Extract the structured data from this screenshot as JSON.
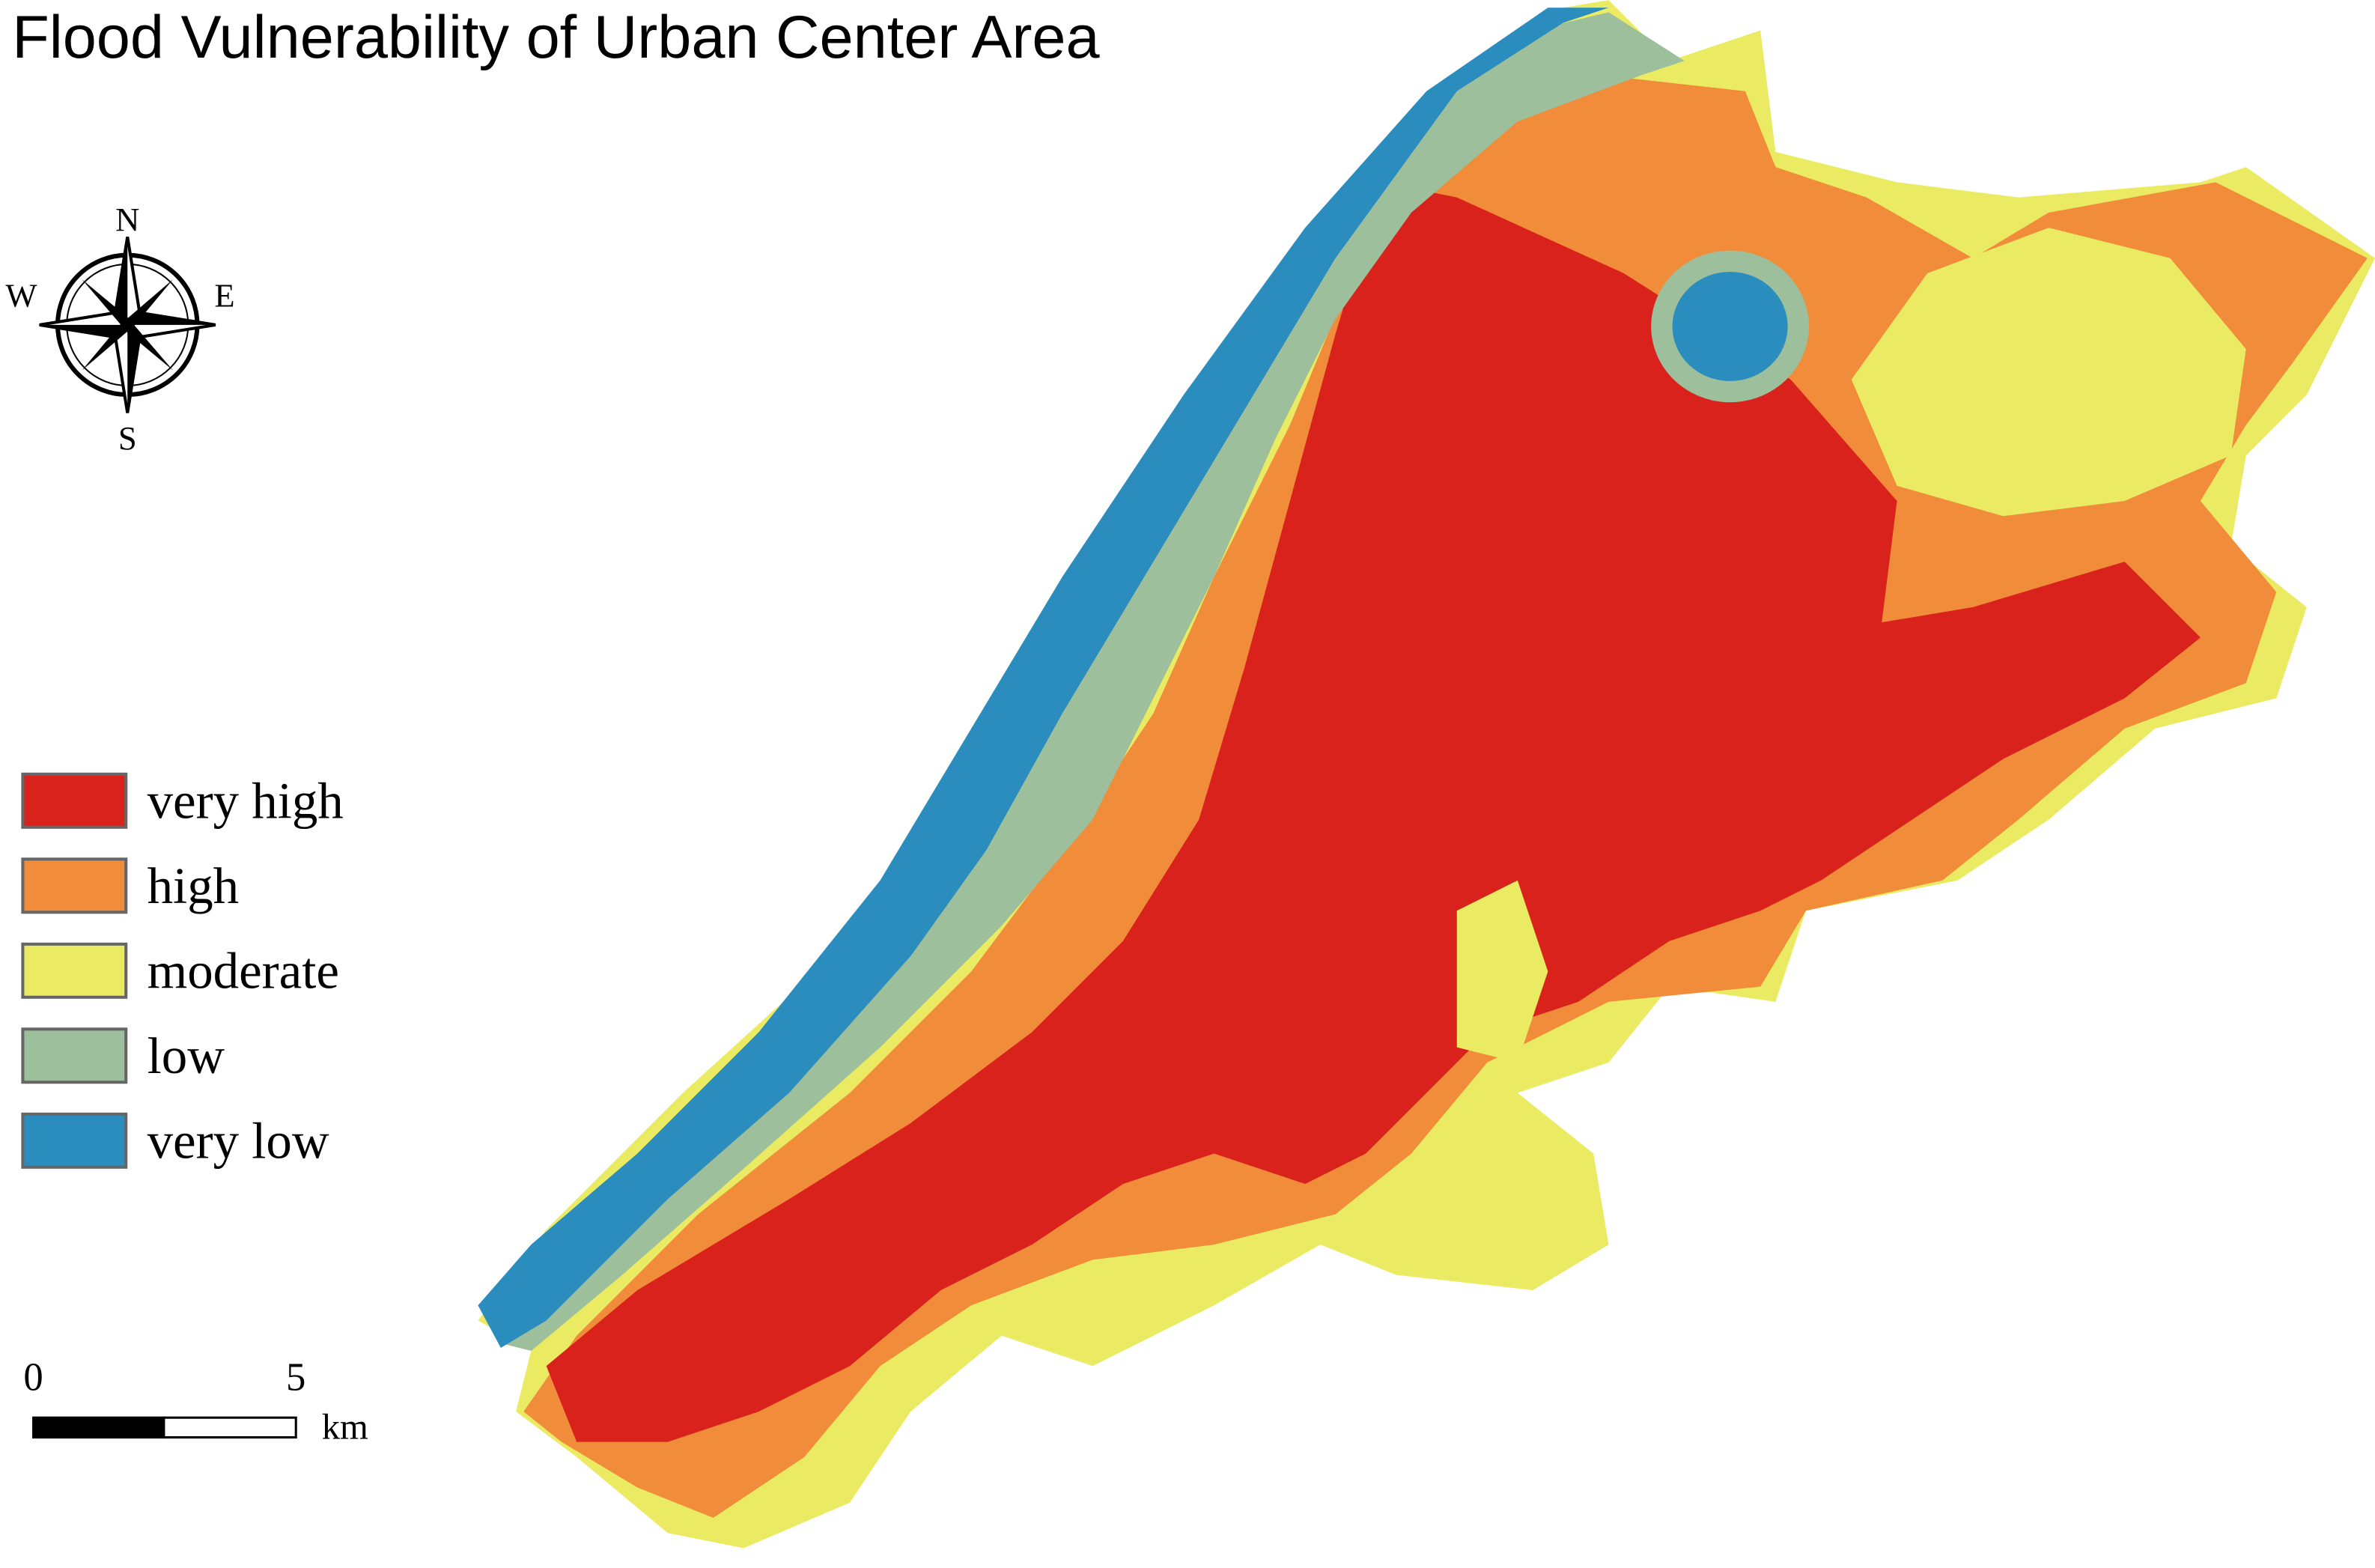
{
  "title": "Flood Vulnerability of Urban Center Area",
  "compass": {
    "north": "N",
    "south": "S",
    "west": "W",
    "east": "E"
  },
  "legend": {
    "items": [
      {
        "label": "very high",
        "color": "#d8221b"
      },
      {
        "label": "high",
        "color": "#f08c3a"
      },
      {
        "label": "moderate",
        "color": "#ebeb63"
      },
      {
        "label": "low",
        "color": "#9dbf9b"
      },
      {
        "label": "very low",
        "color": "#2b8cbe"
      }
    ]
  },
  "scale_bar": {
    "ticks": [
      0,
      5
    ],
    "unit": "km"
  }
}
